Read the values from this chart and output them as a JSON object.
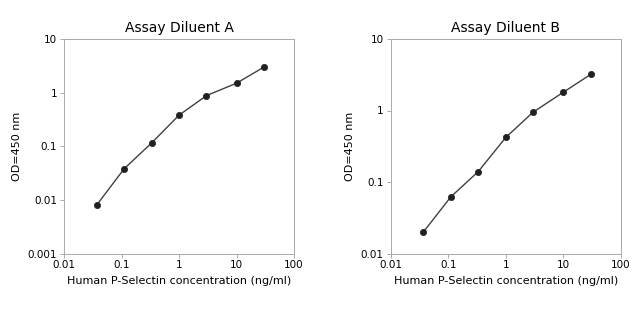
{
  "panel_A": {
    "title": "Assay Diluent A",
    "x": [
      0.037,
      0.111,
      0.333,
      1.0,
      3.0,
      10.0,
      30.0
    ],
    "y": [
      0.008,
      0.038,
      0.115,
      0.38,
      0.88,
      1.5,
      3.0
    ],
    "xlabel": "Human P-Selectin concentration (ng/ml)",
    "ylabel": "OD=450 nm",
    "xlim": [
      0.01,
      100
    ],
    "ylim": [
      0.001,
      10
    ],
    "xticks": [
      0.01,
      0.1,
      1,
      10,
      100
    ],
    "yticks": [
      0.001,
      0.01,
      0.1,
      1,
      10
    ]
  },
  "panel_B": {
    "title": "Assay Diluent B",
    "x": [
      0.037,
      0.111,
      0.333,
      1.0,
      3.0,
      10.0,
      30.0
    ],
    "y": [
      0.02,
      0.062,
      0.14,
      0.42,
      0.95,
      1.8,
      3.2
    ],
    "xlabel": "Human P-Selectin concentration (ng/ml)",
    "ylabel": "OD=450 nm",
    "xlim": [
      0.01,
      100
    ],
    "ylim": [
      0.01,
      10
    ],
    "xticks": [
      0.01,
      0.1,
      1,
      10,
      100
    ],
    "yticks": [
      0.01,
      0.1,
      1,
      10
    ]
  },
  "line_color": "#404040",
  "marker_color": "#202020",
  "marker_size": 4.5,
  "line_width": 1.0,
  "title_fontsize": 10,
  "label_fontsize": 8,
  "tick_fontsize": 7.5,
  "spine_color": "#aaaaaa",
  "bg_color": "#ffffff"
}
